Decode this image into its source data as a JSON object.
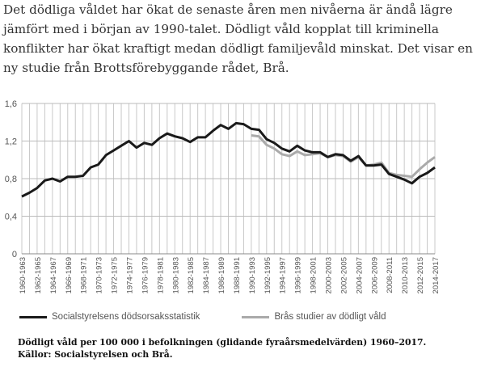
{
  "intro_text": "Det dödliga våldet har ökat de senaste åren men nivåerna är ändå lägre jämfört med i början av 1990-talet. Dödligt våld kopplat till kriminella konflikter har ökat kraftigt medan dödligt familjevåld minskat. Det visar en ny studie från Brottsförebyggande rådet, Brå.",
  "caption": {
    "line1": "Dödligt våld per 100 000 i befolkningen (glidande fyraårsmedelvärden) 1960–2017.",
    "line2": "Källor: Socialstyrelsen och Brå."
  },
  "chart_data": {
    "type": "line",
    "title": "",
    "xlabel": "",
    "ylabel": "",
    "ylim": [
      0,
      1.6
    ],
    "yticks": [
      "0",
      "0,4",
      "0,8",
      "1,2",
      "1,6"
    ],
    "ytick_values": [
      0,
      0.4,
      0.8,
      1.2,
      1.6
    ],
    "grid": true,
    "legend_position": "bottom-left",
    "start_year": 1960,
    "xtick_labels": [
      "1960-1963",
      "1962-1965",
      "1964-1967",
      "1966-1969",
      "1968-1971",
      "1970-1973",
      "1972-1975",
      "1974-1977",
      "1976-1979",
      "1978-1981",
      "1980-1983",
      "1982-1985",
      "1984-1987",
      "1986-1989",
      "1988-1991",
      "1990-1993",
      "1992-1995",
      "1994-1997",
      "1996-1999",
      "1998-2001",
      "2000-2003",
      "2002-2005",
      "2004-2007",
      "2006-2009",
      "2008-2011",
      "2010-2013",
      "2012-2015",
      "2014-2017"
    ],
    "series": [
      {
        "name": "Socialstyrelsens dödsorsaksstatistik",
        "color": "#1a1a1a",
        "start_year": 1960,
        "values": [
          0.61,
          0.65,
          0.7,
          0.78,
          0.8,
          0.77,
          0.82,
          0.82,
          0.83,
          0.92,
          0.95,
          1.05,
          1.1,
          1.15,
          1.2,
          1.13,
          1.18,
          1.16,
          1.23,
          1.28,
          1.25,
          1.23,
          1.19,
          1.24,
          1.24,
          1.31,
          1.37,
          1.33,
          1.39,
          1.38,
          1.33,
          1.32,
          1.22,
          1.18,
          1.12,
          1.09,
          1.15,
          1.1,
          1.08,
          1.08,
          1.03,
          1.06,
          1.05,
          0.99,
          1.04,
          0.94,
          0.94,
          0.95,
          0.85,
          0.82,
          0.79,
          0.75,
          0.82,
          0.86,
          0.92
        ]
      },
      {
        "name": "Brås studier av dödligt våld",
        "color": "#aaaaaa",
        "start_year": 1990,
        "values": [
          1.26,
          1.25,
          1.16,
          1.12,
          1.06,
          1.04,
          1.09,
          1.05,
          1.06,
          1.07,
          1.03,
          1.05,
          1.04,
          0.98,
          1.03,
          0.94,
          0.95,
          0.97,
          0.86,
          0.84,
          0.83,
          0.82,
          0.9,
          0.97,
          1.03
        ]
      }
    ]
  }
}
